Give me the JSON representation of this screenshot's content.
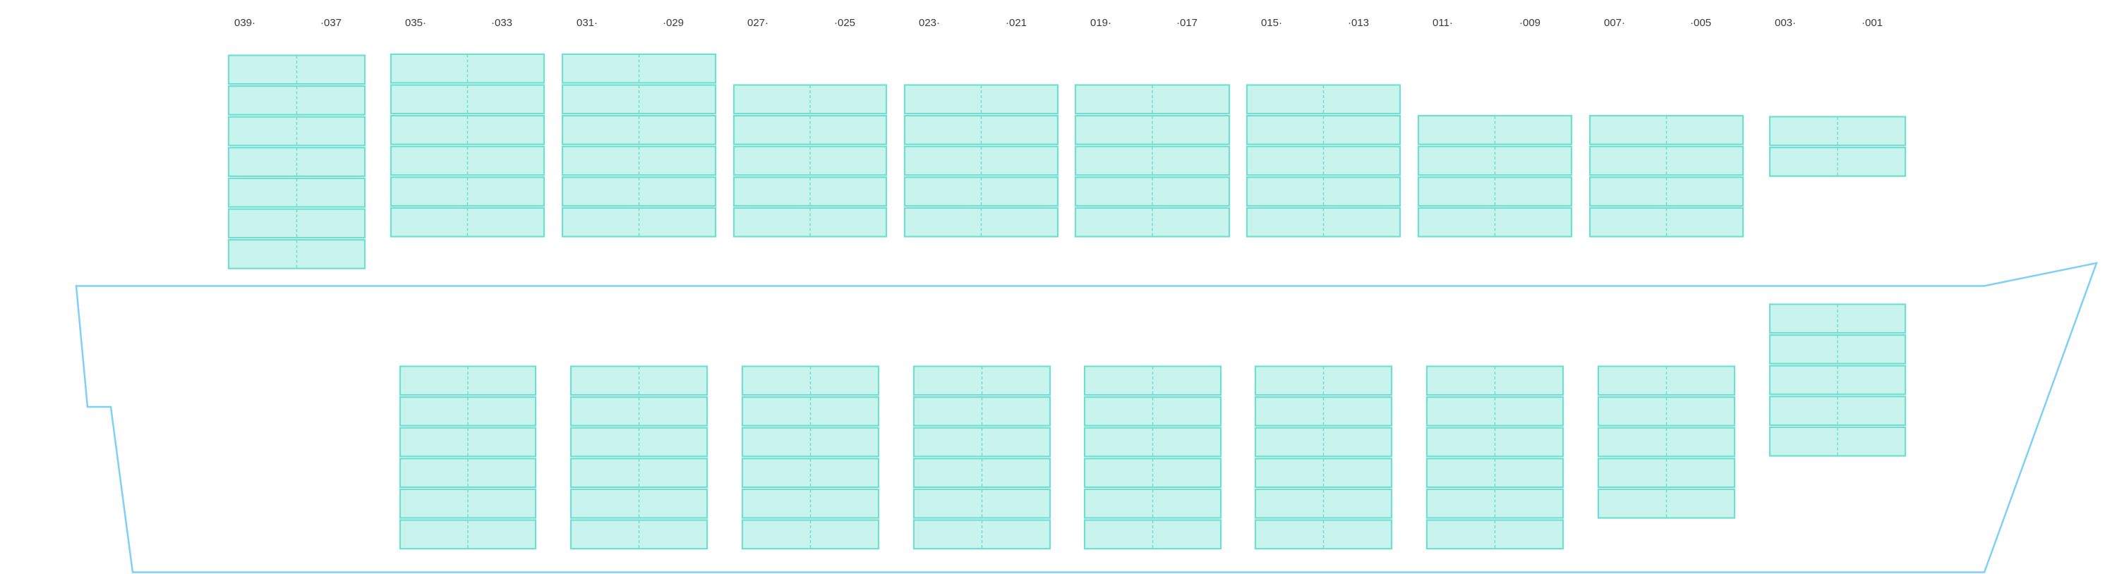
{
  "colors": {
    "slot_fill": "#c9f3ed",
    "slot_stroke": "#6fe0cf",
    "hull_stroke": "#7fd0f5",
    "label": "#3a3a3a"
  },
  "bays": [
    {
      "aft_label": "039·",
      "fwd_label": "·037",
      "deck_tiers": 7,
      "hold_tiers": 0
    },
    {
      "aft_label": "035·",
      "fwd_label": "·033",
      "deck_tiers": 6,
      "hold_tiers": 6
    },
    {
      "aft_label": "031·",
      "fwd_label": "·029",
      "deck_tiers": 6,
      "hold_tiers": 6
    },
    {
      "aft_label": "027·",
      "fwd_label": "·025",
      "deck_tiers": 5,
      "hold_tiers": 6
    },
    {
      "aft_label": "023·",
      "fwd_label": "·021",
      "deck_tiers": 5,
      "hold_tiers": 6
    },
    {
      "aft_label": "019·",
      "fwd_label": "·017",
      "deck_tiers": 5,
      "hold_tiers": 6
    },
    {
      "aft_label": "015·",
      "fwd_label": "·013",
      "deck_tiers": 5,
      "hold_tiers": 6
    },
    {
      "aft_label": "011·",
      "fwd_label": "·009",
      "deck_tiers": 4,
      "hold_tiers": 6
    },
    {
      "aft_label": "007·",
      "fwd_label": "·005",
      "deck_tiers": 4,
      "hold_tiers": 5
    },
    {
      "aft_label": "003·",
      "fwd_label": "·001",
      "deck_tiers": 2,
      "hold_tiers": 5
    }
  ]
}
